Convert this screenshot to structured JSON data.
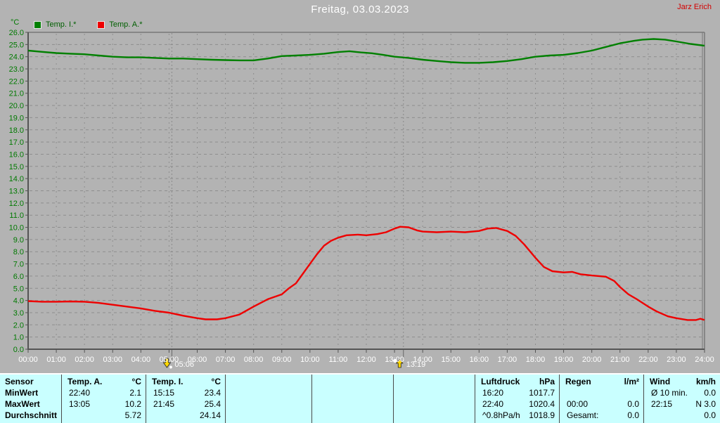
{
  "window": {
    "title": "Freitag, 03.03.2023",
    "user": "Jarz Erich"
  },
  "colors": {
    "background": "#b3b3b3",
    "grid": "#8e8e8e",
    "axis": "#555555",
    "frame": "#777777",
    "y_label": "#007a00",
    "x_label": "#ffffff",
    "table_bg": "#c9ffff",
    "temp_i": "#008000",
    "temp_a": "#ee0000",
    "marker": "#8a8a8a"
  },
  "chart_data": {
    "type": "line",
    "title": "Freitag, 03.03.2023",
    "grid": true,
    "legend_position": "top-left",
    "x_axis": {
      "label": "",
      "range_hours": [
        0,
        24
      ],
      "ticks": [
        "00:00",
        "01:00",
        "02:00",
        "03:00",
        "04:00",
        "05:00",
        "06:00",
        "07:00",
        "08:00",
        "09:00",
        "10:00",
        "11:00",
        "12:00",
        "13:00",
        "14:00",
        "15:00",
        "16:00",
        "17:00",
        "18:00",
        "19:00",
        "20:00",
        "21:00",
        "22:00",
        "23:00",
        "24:00"
      ]
    },
    "y_axis": {
      "label": "°C",
      "range": [
        0,
        26
      ],
      "tick_step": 1.0,
      "tick_labels": [
        "0.0",
        "1.0",
        "2.0",
        "3.0",
        "4.0",
        "5.0",
        "6.0",
        "7.0",
        "8.0",
        "9.0",
        "10.0",
        "11.0",
        "12.0",
        "13.0",
        "14.0",
        "15.0",
        "16.0",
        "17.0",
        "18.0",
        "19.0",
        "20.0",
        "21.0",
        "22.0",
        "23.0",
        "24.0",
        "25.0",
        "26.0"
      ]
    },
    "series": [
      {
        "name": "Temp. I.*",
        "color": "#008000",
        "points": [
          [
            0,
            24.5
          ],
          [
            0.5,
            24.4
          ],
          [
            1,
            24.3
          ],
          [
            1.5,
            24.25
          ],
          [
            2,
            24.2
          ],
          [
            2.5,
            24.1
          ],
          [
            3,
            24.0
          ],
          [
            3.5,
            23.95
          ],
          [
            4,
            23.95
          ],
          [
            4.5,
            23.9
          ],
          [
            5,
            23.85
          ],
          [
            5.5,
            23.85
          ],
          [
            6,
            23.8
          ],
          [
            6.5,
            23.75
          ],
          [
            7,
            23.72
          ],
          [
            7.5,
            23.7
          ],
          [
            8,
            23.7
          ],
          [
            8.5,
            23.85
          ],
          [
            9,
            24.05
          ],
          [
            9.5,
            24.1
          ],
          [
            10,
            24.15
          ],
          [
            10.5,
            24.25
          ],
          [
            11,
            24.38
          ],
          [
            11.4,
            24.45
          ],
          [
            11.8,
            24.35
          ],
          [
            12.2,
            24.28
          ],
          [
            12.6,
            24.15
          ],
          [
            13,
            24.0
          ],
          [
            13.5,
            23.9
          ],
          [
            14,
            23.75
          ],
          [
            14.5,
            23.65
          ],
          [
            15,
            23.55
          ],
          [
            15.5,
            23.5
          ],
          [
            16,
            23.5
          ],
          [
            16.5,
            23.55
          ],
          [
            17,
            23.65
          ],
          [
            17.5,
            23.8
          ],
          [
            18,
            24.0
          ],
          [
            18.5,
            24.1
          ],
          [
            19,
            24.15
          ],
          [
            19.5,
            24.3
          ],
          [
            20,
            24.5
          ],
          [
            20.5,
            24.8
          ],
          [
            21,
            25.1
          ],
          [
            21.5,
            25.3
          ],
          [
            21.8,
            25.4
          ],
          [
            22.2,
            25.45
          ],
          [
            22.6,
            25.4
          ],
          [
            23,
            25.25
          ],
          [
            23.5,
            25.05
          ],
          [
            24,
            24.9
          ]
        ]
      },
      {
        "name": "Temp. A.*",
        "color": "#ee0000",
        "points": [
          [
            0,
            3.95
          ],
          [
            0.5,
            3.9
          ],
          [
            1,
            3.9
          ],
          [
            1.5,
            3.92
          ],
          [
            2,
            3.9
          ],
          [
            2.5,
            3.8
          ],
          [
            3,
            3.65
          ],
          [
            3.5,
            3.5
          ],
          [
            4,
            3.35
          ],
          [
            4.5,
            3.15
          ],
          [
            5,
            3.0
          ],
          [
            5.5,
            2.75
          ],
          [
            6,
            2.55
          ],
          [
            6.3,
            2.45
          ],
          [
            6.7,
            2.45
          ],
          [
            7,
            2.55
          ],
          [
            7.5,
            2.85
          ],
          [
            8,
            3.5
          ],
          [
            8.5,
            4.1
          ],
          [
            9,
            4.5
          ],
          [
            9.25,
            5.0
          ],
          [
            9.5,
            5.4
          ],
          [
            9.75,
            6.2
          ],
          [
            10,
            7.0
          ],
          [
            10.25,
            7.8
          ],
          [
            10.5,
            8.5
          ],
          [
            10.75,
            8.9
          ],
          [
            11,
            9.15
          ],
          [
            11.3,
            9.35
          ],
          [
            11.7,
            9.4
          ],
          [
            12,
            9.35
          ],
          [
            12.4,
            9.45
          ],
          [
            12.7,
            9.6
          ],
          [
            13,
            9.9
          ],
          [
            13.2,
            10.05
          ],
          [
            13.5,
            10.0
          ],
          [
            13.8,
            9.75
          ],
          [
            14,
            9.65
          ],
          [
            14.5,
            9.6
          ],
          [
            15,
            9.65
          ],
          [
            15.5,
            9.6
          ],
          [
            16,
            9.7
          ],
          [
            16.3,
            9.9
          ],
          [
            16.6,
            9.95
          ],
          [
            17,
            9.7
          ],
          [
            17.3,
            9.3
          ],
          [
            17.6,
            8.6
          ],
          [
            18,
            7.5
          ],
          [
            18.3,
            6.75
          ],
          [
            18.6,
            6.4
          ],
          [
            19,
            6.3
          ],
          [
            19.3,
            6.35
          ],
          [
            19.6,
            6.15
          ],
          [
            20,
            6.05
          ],
          [
            20.5,
            5.95
          ],
          [
            20.8,
            5.6
          ],
          [
            21,
            5.1
          ],
          [
            21.3,
            4.5
          ],
          [
            21.6,
            4.1
          ],
          [
            22,
            3.5
          ],
          [
            22.3,
            3.1
          ],
          [
            22.7,
            2.7
          ],
          [
            23,
            2.55
          ],
          [
            23.4,
            2.4
          ],
          [
            23.7,
            2.4
          ],
          [
            23.85,
            2.5
          ],
          [
            24,
            2.4
          ]
        ]
      }
    ],
    "markers": [
      {
        "label": "05:06",
        "hour": 5.1,
        "icon": "moonset-icon"
      },
      {
        "label": "13:19",
        "hour": 13.3167,
        "icon": "moonrise-icon"
      }
    ]
  },
  "stats_table": {
    "row_labels": [
      "Sensor",
      "MinWert",
      "MaxWert",
      "Durchschnitt"
    ],
    "columns": [
      {
        "name": "temp_a",
        "header": "Temp. A.",
        "unit": "°C",
        "min": {
          "time": "22:40",
          "value": "2.1"
        },
        "max": {
          "time": "13:05",
          "value": "10.2"
        },
        "avg": {
          "label": "",
          "value": "5.72"
        }
      },
      {
        "name": "temp_i",
        "header": "Temp. I.",
        "unit": "°C",
        "min": {
          "time": "15:15",
          "value": "23.4"
        },
        "max": {
          "time": "21:45",
          "value": "25.4"
        },
        "avg": {
          "label": "",
          "value": "24.14"
        }
      },
      {
        "name": "spare1",
        "header": "",
        "unit": "",
        "min": {
          "time": "",
          "value": ""
        },
        "max": {
          "time": "",
          "value": ""
        },
        "avg": {
          "label": "",
          "value": ""
        }
      },
      {
        "name": "spare2",
        "header": "",
        "unit": "",
        "min": {
          "time": "",
          "value": ""
        },
        "max": {
          "time": "",
          "value": ""
        },
        "avg": {
          "label": "",
          "value": ""
        }
      },
      {
        "name": "spare3",
        "header": "",
        "unit": "",
        "min": {
          "time": "",
          "value": ""
        },
        "max": {
          "time": "",
          "value": ""
        },
        "avg": {
          "label": "",
          "value": ""
        }
      },
      {
        "name": "luftdruck",
        "header": "Luftdruck",
        "unit": "hPa",
        "min": {
          "time": "16:20",
          "value": "1017.7"
        },
        "max": {
          "time": "22:40",
          "value": "1020.4"
        },
        "avg": {
          "label": "^0.8hPa/h",
          "value": "1018.9"
        }
      },
      {
        "name": "regen",
        "header": "Regen",
        "unit": "l/m²",
        "min": {
          "time": "",
          "value": ""
        },
        "max": {
          "time": "00:00",
          "value": "0.0"
        },
        "avg": {
          "label": "Gesamt:",
          "value": "0.0"
        }
      },
      {
        "name": "wind",
        "header": "Wind",
        "unit": "km/h",
        "min": {
          "time": "Ø 10 min.",
          "value": "0.0"
        },
        "max": {
          "time": "22:15",
          "value": "N 3.0"
        },
        "avg": {
          "label": "",
          "value": "0.0"
        }
      }
    ]
  }
}
